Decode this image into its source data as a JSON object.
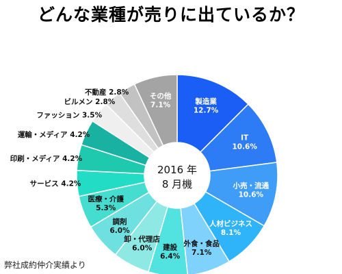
{
  "title": "どんな業種が売りに出ているか？",
  "source_note": "弊社成約仲介実績より",
  "center_label": {
    "line1": "2016 年",
    "line2": "8 月機"
  },
  "chart_data": {
    "type": "donut",
    "title": "どんな業種が売りに出ているか？",
    "start": "12 o'clock, clockwise",
    "unit": "%",
    "slices": [
      {
        "name": "製造業",
        "value": 12.7,
        "value_label": "12.7%",
        "color": "#1a5ef5"
      },
      {
        "name": "IT",
        "value": 10.6,
        "value_label": "10.6%",
        "color": "#2e7bf6"
      },
      {
        "name": "小売・流通",
        "value": 10.6,
        "value_label": "10.6%",
        "color": "#3f9df8"
      },
      {
        "name": "人材ビジネス",
        "value": 8.1,
        "value_label": "8.1%",
        "color": "#2fb3f9"
      },
      {
        "name": "外食・食品",
        "value": 7.1,
        "value_label": "7.1%",
        "color": "#7fd2fb"
      },
      {
        "name": "建設",
        "value": 6.4,
        "value_label": "6.4%",
        "color": "#52e2df"
      },
      {
        "name": "卸・代理店",
        "value": 6.0,
        "value_label": "6.0%",
        "color": "#8ee8e4"
      },
      {
        "name": "調剤",
        "value": 6.0,
        "value_label": "6.0%",
        "color": "#6fe0e0"
      },
      {
        "name": "医療・介護",
        "value": 5.3,
        "value_label": "5.3%",
        "color": "#46ddd1"
      },
      {
        "name": "サービス",
        "value": 4.2,
        "value_label": "4.2%",
        "color": "#23dcc5"
      },
      {
        "name": "印刷・メディア",
        "value": 4.2,
        "value_label": "4.2%",
        "color": "#1fc9ad"
      },
      {
        "name": "運輸・メディア",
        "value": 4.2,
        "value_label": "4.2%",
        "color": "#19b2a2"
      },
      {
        "name": "ファッション",
        "value": 3.5,
        "value_label": "3.5%",
        "color": "#efefef"
      },
      {
        "name": "ビルメン",
        "value": 2.8,
        "value_label": "2.8%",
        "color": "#dedede"
      },
      {
        "name": "不動産",
        "value": 2.8,
        "value_label": "2.8%",
        "color": "#c2c2c2"
      },
      {
        "name": "その他",
        "value": 7.1,
        "value_label": "7.1%",
        "color": "#a4a4a4"
      }
    ]
  }
}
